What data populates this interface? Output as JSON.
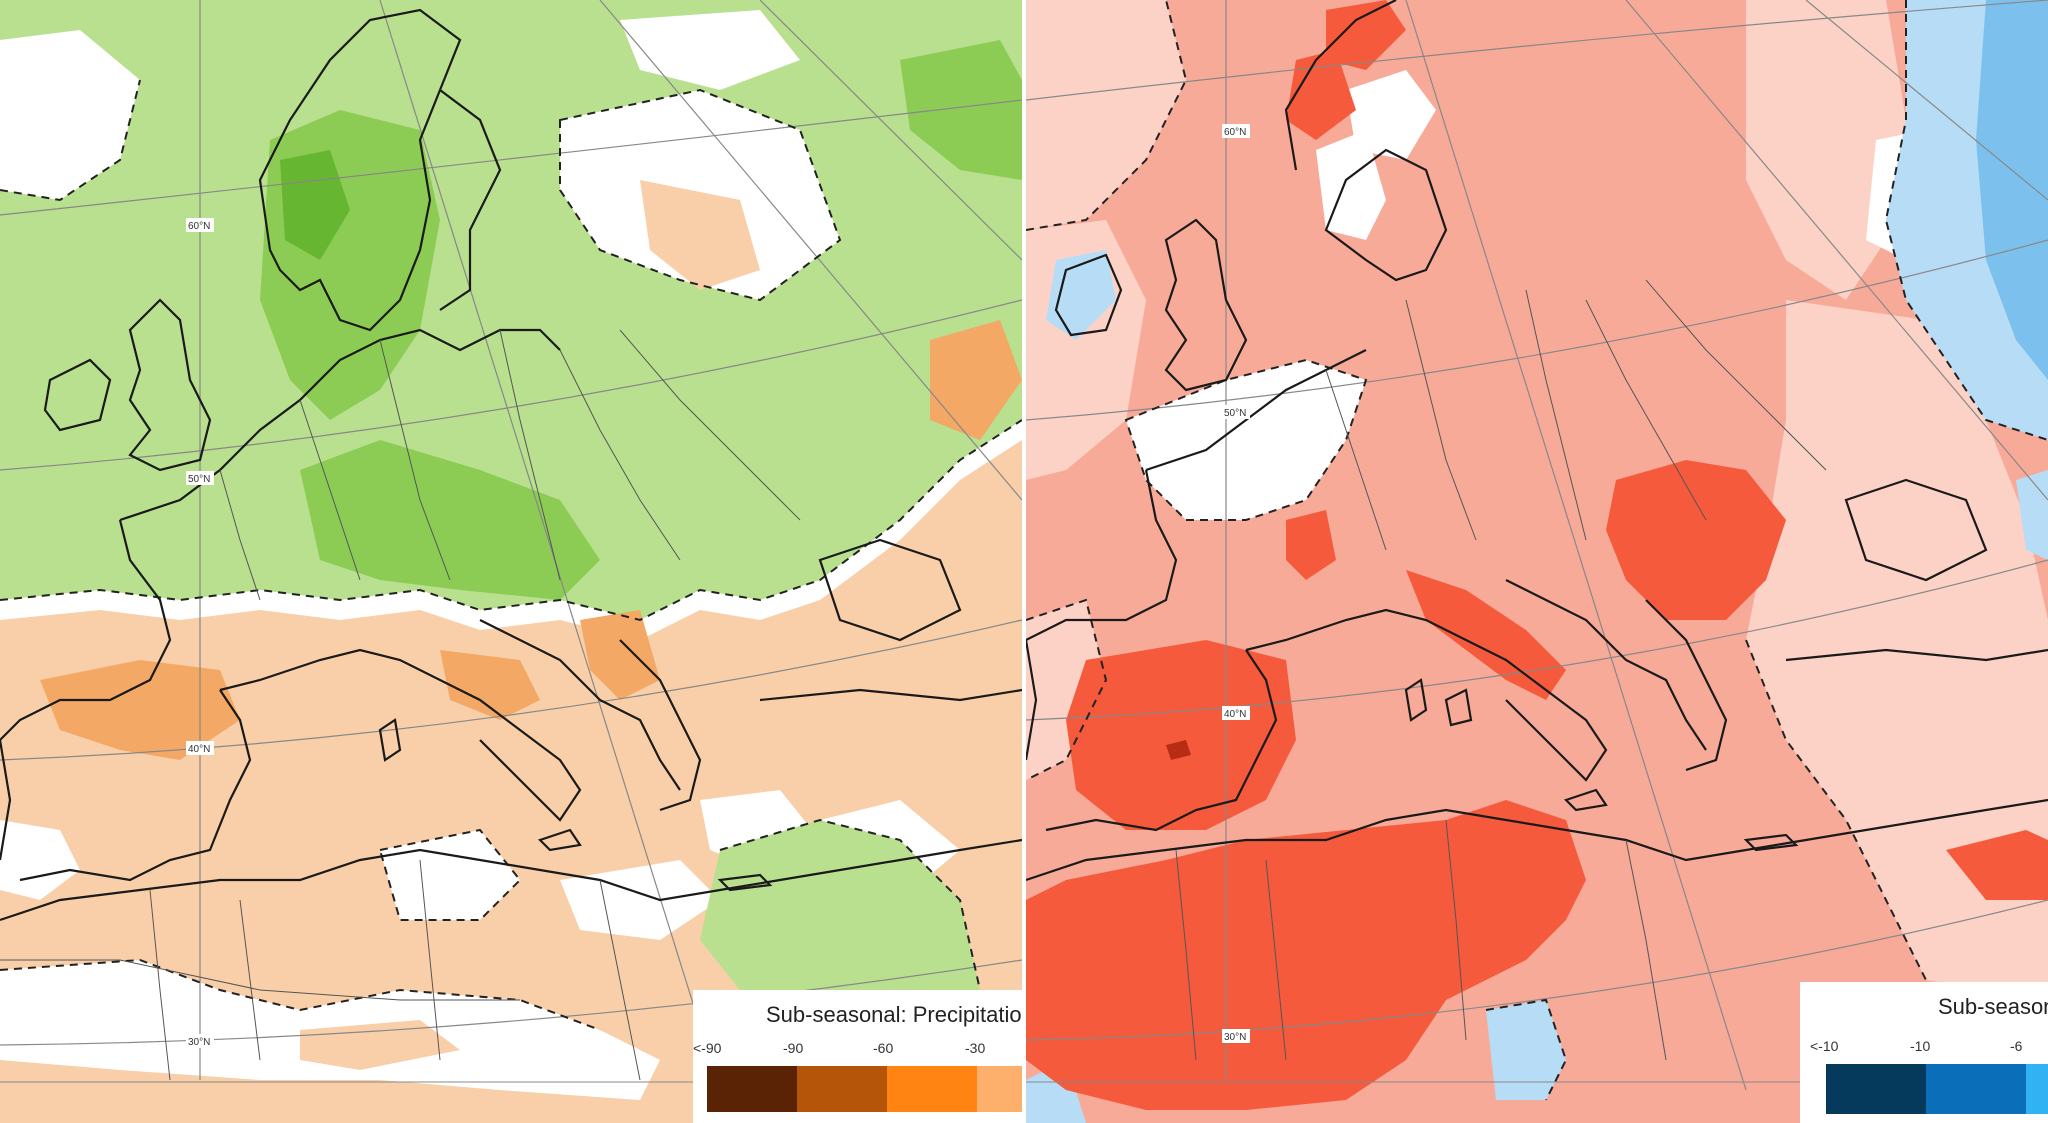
{
  "left_panel": {
    "variable": "precipitation anomaly",
    "colors": {
      "wet": "#b8e08f",
      "wet_strong": "#8ccc55",
      "wet_darkest": "#66b632",
      "dry": "#f8cfa8",
      "dry_strong": "#f3a866",
      "neutral": "#ffffff",
      "land_outline": "#1a1a1a",
      "border": "#555555",
      "graticule": "#888888"
    },
    "lat_labels": [
      "60°N",
      "50°N",
      "40°N",
      "30°N"
    ],
    "legend": {
      "title": "Sub-seasonal: Precipitatio",
      "ticks": [
        "<-90",
        "-90",
        "-60",
        "-30"
      ],
      "colors": [
        "#5b2305",
        "#b45509",
        "#ff8412",
        "#fdb06b"
      ]
    }
  },
  "right_panel": {
    "variable": "temperature anomaly",
    "colors": {
      "warm": "#f8aa99",
      "warm_light": "#fcd2c7",
      "warm_strong": "#f55a3c",
      "warm_darkest": "#b92c14",
      "cold": "#b7dcf5",
      "cold_strong": "#7cc0ee",
      "neutral": "#ffffff",
      "land_outline": "#1a1a1a",
      "border": "#555555",
      "graticule": "#888888"
    },
    "lat_labels": [
      "60°N",
      "50°N",
      "40°N",
      "30°N"
    ],
    "legend": {
      "title": "Sub-season",
      "ticks": [
        "<-10",
        "-10",
        "-6"
      ],
      "colors": [
        "#063a5c",
        "#0a6fb8",
        "#31b3f3"
      ]
    }
  }
}
